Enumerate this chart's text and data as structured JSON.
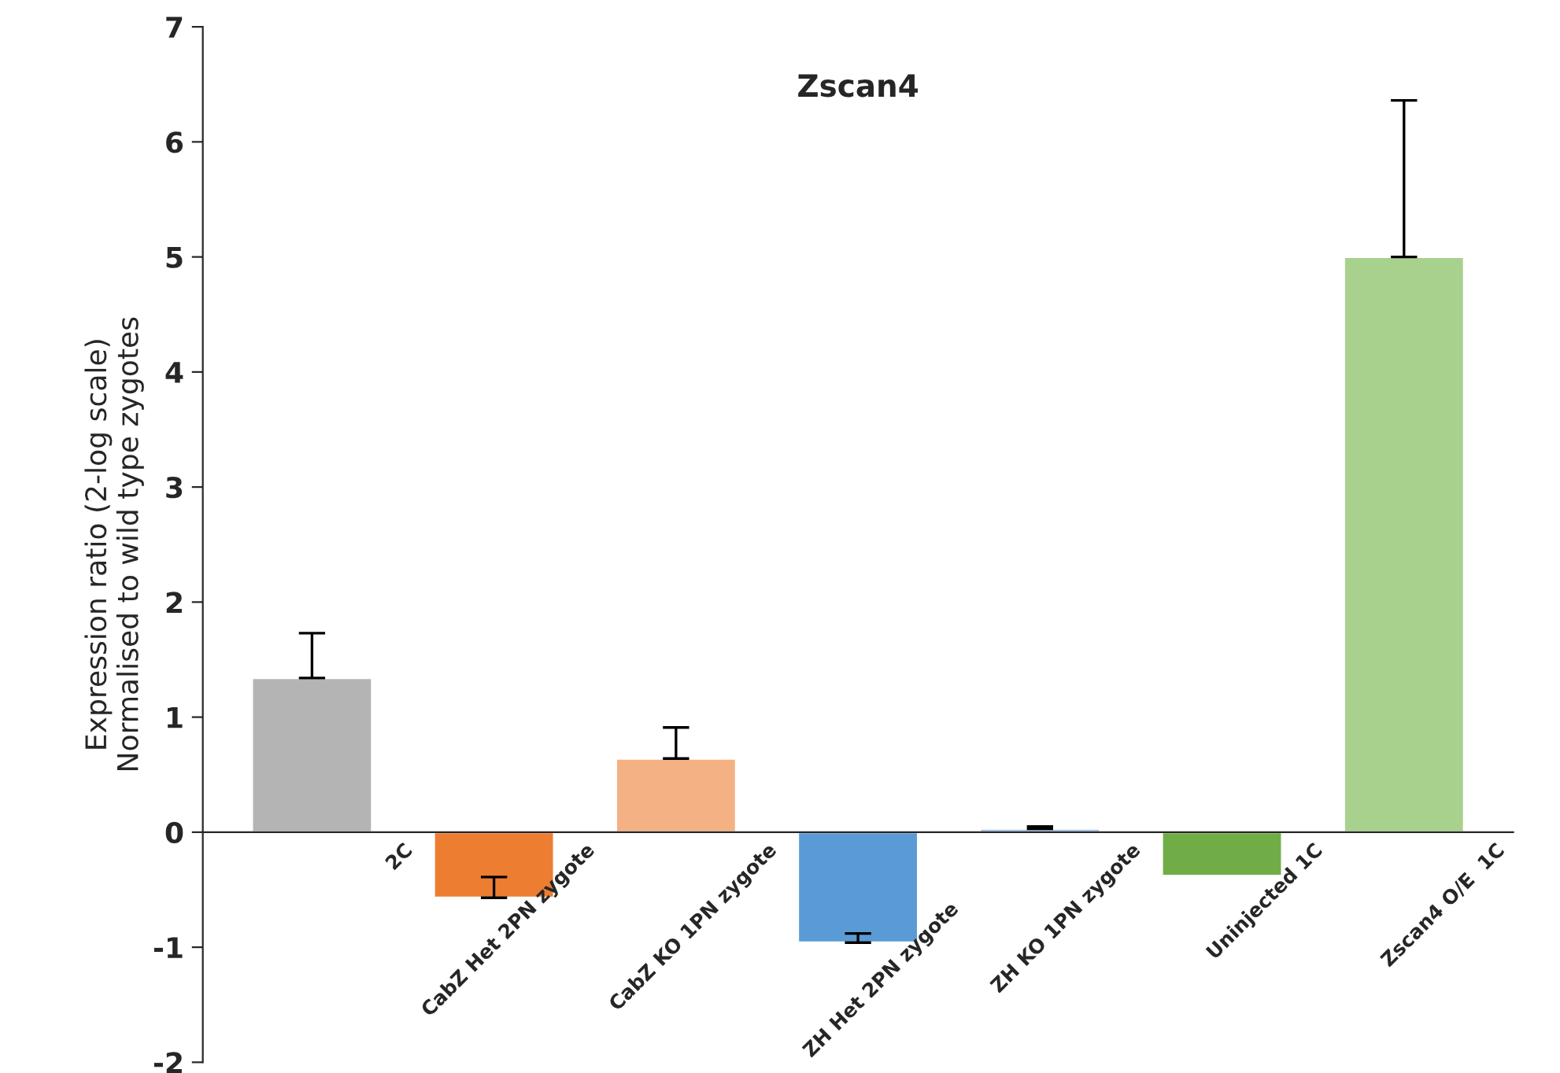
{
  "chart_data": {
    "type": "bar",
    "title": "Zscan4",
    "ylabel": "Expression ratio (2-log scale)\nNormalised to wild type zygotes",
    "categories": [
      "2C",
      "CabZ Het 2PN zygote",
      "CabZ KO 1PN zygote",
      "ZH Het 2PN zygote",
      "ZH KO 1PN zygote",
      "Uninjected 1C",
      "Zscan4 O/E  1C"
    ],
    "values": [
      1.34,
      -0.57,
      0.64,
      -0.96,
      0.03,
      -0.38,
      5.0
    ],
    "colors": [
      "#b4b4b4",
      "#ed7d31",
      "#f4b183",
      "#5b9bd5",
      "#9dc3e6",
      "#70ad47",
      "#a9d18e"
    ],
    "errors": [
      [
        1.34,
        1.73
      ],
      [
        -0.57,
        -0.39
      ],
      [
        0.64,
        0.91
      ],
      [
        -0.96,
        -0.88
      ],
      [
        0.03,
        0.05
      ],
      null,
      [
        5.0,
        6.36
      ]
    ],
    "ylim": [
      -2,
      7
    ],
    "yticks": [
      -2,
      -1,
      0,
      1,
      2,
      3,
      4,
      5,
      6,
      7
    ],
    "grid": false,
    "legend": false
  }
}
